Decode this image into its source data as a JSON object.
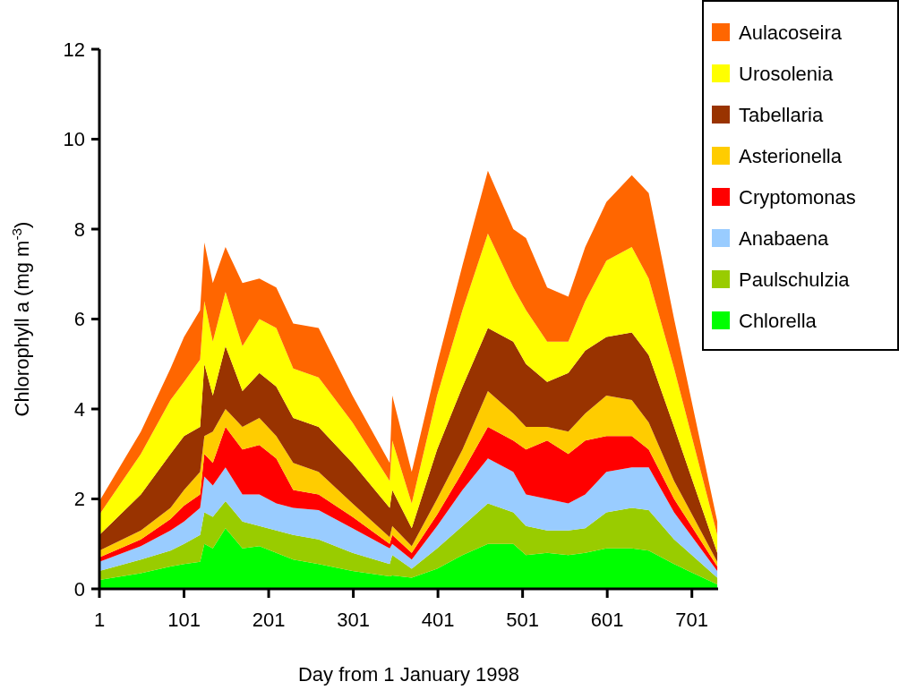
{
  "chart_data": {
    "type": "area",
    "stacked": true,
    "xlabel": "Day from 1 January 1998",
    "ylabel": "Chlorophyll a (mg m$^{-3}$)",
    "x": [
      1,
      50,
      85,
      101,
      120,
      125,
      135,
      150,
      170,
      190,
      210,
      230,
      260,
      300,
      344,
      347,
      370,
      400,
      430,
      460,
      490,
      505,
      530,
      555,
      575,
      600,
      630,
      650,
      680,
      731
    ],
    "xlim": [
      1,
      732
    ],
    "xticks": [
      1,
      101,
      201,
      301,
      401,
      501,
      601,
      701
    ],
    "ylim": [
      0,
      12
    ],
    "yticks": [
      0,
      2,
      4,
      6,
      8,
      10,
      12
    ],
    "grid": false,
    "legend": "top right",
    "series": [
      {
        "name": "Chlorella",
        "color": "#00ff00",
        "values": [
          0.2,
          0.35,
          0.5,
          0.55,
          0.6,
          1.0,
          0.9,
          1.35,
          0.9,
          0.95,
          0.8,
          0.65,
          0.55,
          0.4,
          0.28,
          0.3,
          0.25,
          0.45,
          0.75,
          1.0,
          1.0,
          0.75,
          0.8,
          0.75,
          0.8,
          0.9,
          0.9,
          0.85,
          0.55,
          0.1
        ]
      },
      {
        "name": "Paulschulzia",
        "color": "#99cc00",
        "values": [
          0.2,
          0.3,
          0.35,
          0.45,
          0.6,
          0.7,
          0.7,
          0.6,
          0.6,
          0.45,
          0.5,
          0.55,
          0.55,
          0.4,
          0.27,
          0.45,
          0.2,
          0.45,
          0.65,
          0.9,
          0.7,
          0.65,
          0.5,
          0.55,
          0.55,
          0.8,
          0.9,
          0.9,
          0.55,
          0.15
        ]
      },
      {
        "name": "Anabaena",
        "color": "#99ccff",
        "values": [
          0.2,
          0.3,
          0.45,
          0.5,
          0.6,
          0.8,
          0.7,
          0.75,
          0.6,
          0.7,
          0.6,
          0.6,
          0.65,
          0.55,
          0.35,
          0.25,
          0.2,
          0.5,
          0.8,
          1.0,
          0.9,
          0.7,
          0.7,
          0.6,
          0.75,
          0.9,
          0.9,
          0.95,
          0.6,
          0.15
        ]
      },
      {
        "name": "Cryptomonas",
        "color": "#ff0000",
        "values": [
          0.1,
          0.15,
          0.25,
          0.35,
          0.3,
          0.5,
          0.5,
          0.9,
          1.0,
          1.1,
          1.0,
          0.4,
          0.35,
          0.25,
          0.1,
          0.2,
          0.15,
          0.25,
          0.4,
          0.7,
          0.7,
          1.0,
          1.3,
          1.1,
          1.2,
          0.8,
          0.7,
          0.4,
          0.3,
          0.1
        ]
      },
      {
        "name": "Asterionella",
        "color": "#ffcc00",
        "values": [
          0.15,
          0.2,
          0.25,
          0.35,
          0.5,
          0.4,
          0.7,
          0.4,
          0.5,
          0.6,
          0.5,
          0.6,
          0.5,
          0.3,
          0.15,
          0.2,
          0.15,
          0.35,
          0.5,
          0.8,
          0.6,
          0.5,
          0.3,
          0.5,
          0.6,
          0.9,
          0.8,
          0.6,
          0.4,
          0.1
        ]
      },
      {
        "name": "Tabellaria",
        "color": "#993300",
        "values": [
          0.35,
          0.8,
          1.2,
          1.2,
          1.0,
          1.6,
          0.8,
          1.4,
          0.8,
          1.0,
          1.1,
          1.0,
          1.0,
          0.9,
          0.65,
          0.8,
          0.4,
          1.1,
          1.4,
          1.4,
          1.6,
          1.4,
          1.0,
          1.3,
          1.4,
          1.3,
          1.5,
          1.5,
          1.2,
          0.2
        ]
      },
      {
        "name": "Urosolenia",
        "color": "#ffff00",
        "values": [
          0.45,
          0.9,
          1.2,
          1.2,
          1.5,
          1.4,
          1.2,
          1.2,
          1.0,
          1.2,
          1.3,
          1.1,
          1.1,
          0.9,
          0.6,
          1.1,
          0.55,
          1.2,
          1.7,
          2.1,
          1.2,
          1.2,
          0.9,
          0.7,
          1.1,
          1.7,
          1.9,
          1.7,
          1.3,
          0.4
        ]
      },
      {
        "name": "Aulacoseira",
        "color": "#ff6600",
        "values": [
          0.3,
          0.5,
          0.7,
          1.0,
          1.1,
          1.3,
          1.3,
          1.0,
          1.4,
          0.9,
          0.9,
          1.0,
          1.1,
          0.6,
          0.4,
          1.0,
          0.7,
          0.7,
          1.0,
          1.4,
          1.3,
          1.6,
          1.2,
          1.0,
          1.2,
          1.3,
          1.6,
          1.9,
          1.1,
          0.3
        ]
      }
    ]
  }
}
